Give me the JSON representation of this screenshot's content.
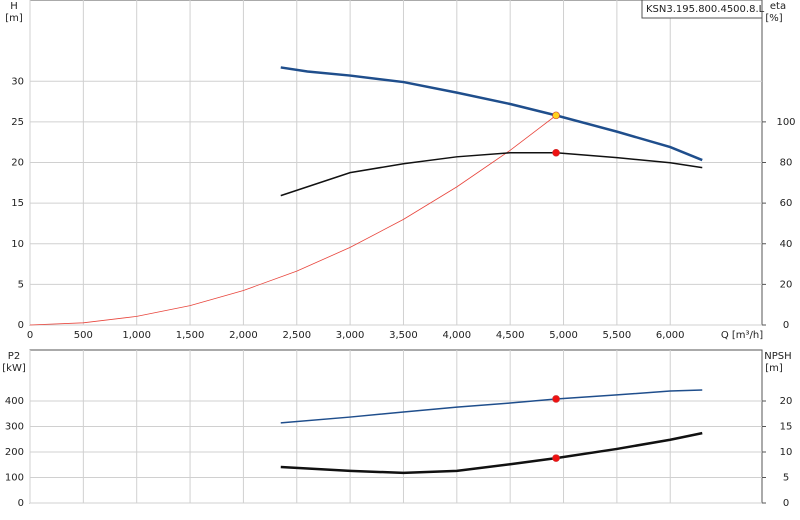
{
  "chart_data": [
    {
      "type": "line",
      "title": "KSN3.195.800.4500.8.L",
      "ylabel": "H",
      "yunit": "[m]",
      "y2label": "eta",
      "y2unit": "[%]",
      "xlabel": "Q [m³/h]",
      "xlim": [
        0,
        6860
      ],
      "xticks": [
        0,
        500,
        {
          "value": 1000,
          "label": "1,000"
        },
        {
          "value": 1500,
          "label": "1,500"
        },
        {
          "value": 2000,
          "label": "2,000"
        },
        {
          "value": 2500,
          "label": "2,500"
        },
        {
          "value": 3000,
          "label": "3,000"
        },
        {
          "value": 3500,
          "label": "3,500"
        },
        {
          "value": 4000,
          "label": "4,000"
        },
        {
          "value": 4500,
          "label": "4,500"
        },
        {
          "value": 5000,
          "label": "5,000"
        },
        {
          "value": 5500,
          "label": "5,500"
        },
        {
          "value": 6000,
          "label": "6,000"
        }
      ],
      "ylim": [
        0,
        40
      ],
      "yticks": [
        0,
        5,
        10,
        15,
        20,
        25,
        30
      ],
      "y2lim": [
        0,
        160
      ],
      "y2ticks": [
        0,
        20,
        40,
        60,
        80,
        100
      ],
      "grid": true,
      "series": [
        {
          "color": "#e8453c",
          "width": 0.8,
          "x": [
            0,
            500,
            1000,
            1500,
            2000,
            2500,
            3000,
            3500,
            4000,
            4500,
            4930
          ],
          "values": [
            0,
            0.27,
            1.06,
            2.39,
            4.25,
            6.63,
            9.55,
            13.0,
            17.0,
            21.5,
            25.8
          ]
        },
        {
          "color": "#1f4e8c",
          "width": 2.5,
          "x": [
            2350,
            2600,
            3000,
            3500,
            4000,
            4500,
            4930,
            5500,
            6000,
            6300
          ],
          "values": [
            31.7,
            31.2,
            30.7,
            29.9,
            28.6,
            27.2,
            25.8,
            23.8,
            21.9,
            20.3
          ]
        },
        {
          "color": "#111111",
          "width": 1.5,
          "axis": "y2",
          "x": [
            2350,
            3000,
            3500,
            4000,
            4500,
            4930,
            5500,
            6000,
            6300
          ],
          "values": [
            63.7,
            75,
            79.4,
            82.8,
            84.8,
            84.8,
            82.4,
            79.9,
            77.5
          ]
        }
      ],
      "points": [
        {
          "x": 4930,
          "y": 25.8,
          "color": "#ffd21f"
        },
        {
          "x": 4930,
          "y": 84.8,
          "color": "#ee1111",
          "axis": "y2"
        }
      ]
    },
    {
      "type": "line",
      "ylabel": "P2",
      "yunit": "[kW]",
      "y2label": "NPSH",
      "y2unit": "[m]",
      "xlim": [
        0,
        6860
      ],
      "ylim": [
        0,
        600
      ],
      "yticks": [
        0,
        100,
        200,
        300,
        400
      ],
      "y2lim": [
        0,
        30
      ],
      "y2ticks": [
        0,
        5,
        10,
        15,
        20
      ],
      "grid": true,
      "series": [
        {
          "color": "#1f4e8c",
          "width": 1.5,
          "x": [
            2350,
            3000,
            3500,
            4000,
            4500,
            4930,
            5500,
            6000,
            6300
          ],
          "values": [
            314,
            337,
            357,
            376,
            392,
            408,
            424,
            439,
            443
          ]
        },
        {
          "color": "#111111",
          "width": 2.5,
          "axis": "y2",
          "x": [
            2350,
            3000,
            3500,
            4000,
            4500,
            4930,
            5500,
            6000,
            6300
          ],
          "values": [
            7.06,
            6.3,
            5.9,
            6.3,
            7.6,
            8.8,
            10.6,
            12.4,
            13.7
          ]
        }
      ],
      "points": [
        {
          "x": 4930,
          "y": 408,
          "color": "#ee1111"
        },
        {
          "x": 4930,
          "y": 8.8,
          "color": "#ee1111",
          "axis": "y2"
        }
      ]
    }
  ]
}
